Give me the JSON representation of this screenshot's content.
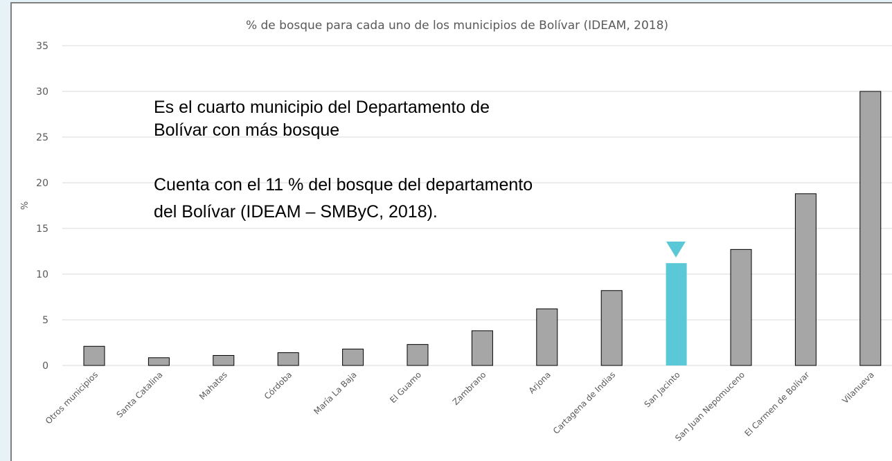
{
  "chart_data": {
    "type": "bar",
    "title": "% de bosque para cada uno de los municipios de Bolívar (IDEAM, 2018)",
    "y_label": "%",
    "categories": [
      "Otros municipios",
      "Santa Catalina",
      "Mahates",
      "Córdoba",
      "María La Baja",
      "El Guamo",
      "Zambrano",
      "Arjona",
      "Cartagena de Indias",
      "San Jacinto",
      "San Juan Nepomuceno",
      "El Carmen de Bolívar",
      "Vilanueva"
    ],
    "values": [
      2.1,
      0.85,
      1.1,
      1.4,
      1.8,
      2.3,
      3.8,
      6.2,
      8.2,
      11.2,
      12.7,
      18.8,
      30
    ],
    "colors": [
      "#a6a6a6",
      "#a6a6a6",
      "#a6a6a6",
      "#a6a6a6",
      "#a6a6a6",
      "#a6a6a6",
      "#a6a6a6",
      "#a6a6a6",
      "#a6a6a6",
      "#5bc8d8",
      "#a6a6a6",
      "#a6a6a6",
      "#a6a6a6"
    ],
    "ylim": [
      0,
      35
    ],
    "yticks": [
      0,
      5,
      10,
      15,
      20,
      25,
      30,
      35
    ],
    "grid": true,
    "annotations": [
      "Es el cuarto municipio del Departamento de",
      "Bolívar con más bosque",
      "Cuenta con el 11 % del bosque del departamento",
      "del Bolívar (IDEAM – SMByC, 2018)."
    ]
  }
}
